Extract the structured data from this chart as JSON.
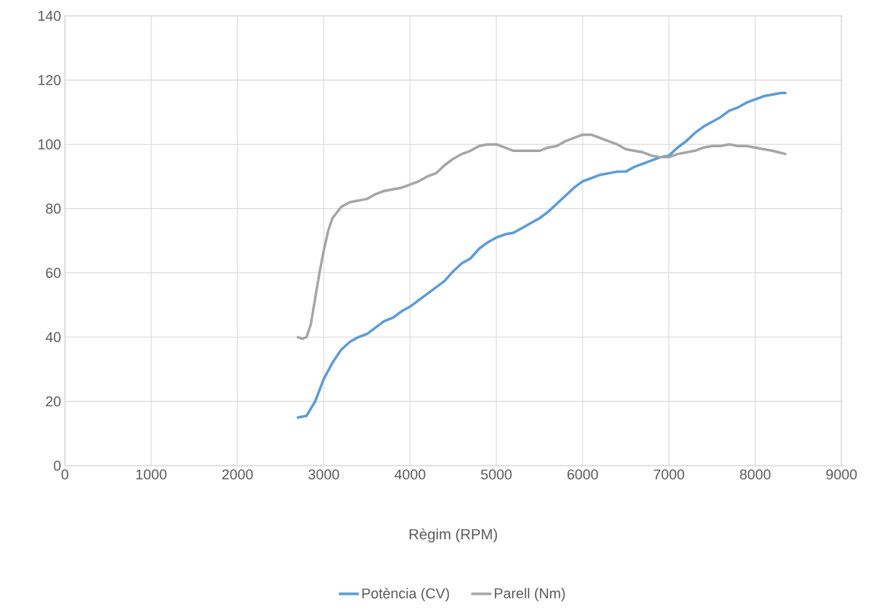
{
  "chart_data": {
    "type": "line",
    "xlabel": "Règim (RPM)",
    "xlim": [
      0,
      9000
    ],
    "xticks": [
      0,
      1000,
      2000,
      3000,
      4000,
      5000,
      6000,
      7000,
      8000,
      9000
    ],
    "ylim": [
      0,
      140
    ],
    "yticks": [
      0,
      20,
      40,
      60,
      80,
      100,
      120,
      140
    ],
    "grid": true,
    "legend": "bottom",
    "series": [
      {
        "name": "Potència (CV)",
        "color": "#5b9bd5",
        "x": [
          2700,
          2800,
          2900,
          3000,
          3100,
          3200,
          3300,
          3400,
          3500,
          3600,
          3700,
          3800,
          3900,
          4000,
          4100,
          4200,
          4300,
          4400,
          4500,
          4600,
          4700,
          4800,
          4900,
          5000,
          5100,
          5200,
          5300,
          5400,
          5500,
          5600,
          5700,
          5800,
          5900,
          6000,
          6100,
          6200,
          6300,
          6400,
          6500,
          6600,
          6700,
          6800,
          6900,
          7000,
          7100,
          7200,
          7300,
          7400,
          7500,
          7600,
          7700,
          7800,
          7900,
          8000,
          8100,
          8200,
          8300,
          8350
        ],
        "values": [
          15,
          15.5,
          20,
          27,
          32,
          36,
          38.5,
          40,
          41,
          43,
          45,
          46,
          48,
          49.5,
          51.5,
          53.5,
          55.5,
          57.5,
          60.5,
          63,
          64.5,
          67.5,
          69.5,
          71,
          72,
          72.5,
          74,
          75.5,
          77,
          79,
          81.5,
          84,
          86.5,
          88.5,
          89.5,
          90.5,
          91,
          91.5,
          91.5,
          93,
          94,
          95,
          96,
          96.5,
          99,
          101,
          103.5,
          105.5,
          107,
          108.5,
          110.5,
          111.5,
          113,
          114,
          115,
          115.5,
          116,
          116
        ]
      },
      {
        "name": "Parell (Nm)",
        "color": "#a5a5a5",
        "x": [
          2700,
          2750,
          2800,
          2850,
          2900,
          2950,
          3000,
          3050,
          3100,
          3200,
          3300,
          3400,
          3500,
          3600,
          3700,
          3800,
          3900,
          4000,
          4100,
          4200,
          4300,
          4400,
          4500,
          4600,
          4700,
          4800,
          4900,
          5000,
          5100,
          5200,
          5300,
          5400,
          5500,
          5600,
          5700,
          5800,
          5900,
          6000,
          6100,
          6200,
          6300,
          6400,
          6500,
          6600,
          6700,
          6800,
          6900,
          7000,
          7100,
          7200,
          7300,
          7400,
          7500,
          7600,
          7700,
          7800,
          7900,
          8000,
          8100,
          8200,
          8350
        ],
        "values": [
          40,
          39.5,
          40,
          44,
          52,
          60,
          67,
          73,
          77,
          80.5,
          82,
          82.5,
          83,
          84.5,
          85.5,
          86,
          86.5,
          87.5,
          88.5,
          90,
          91,
          93.5,
          95.5,
          97,
          98,
          99.5,
          100,
          100,
          99,
          98,
          98,
          98,
          98,
          99,
          99.5,
          101,
          102,
          103,
          103,
          102,
          101,
          100,
          98.5,
          98,
          97.5,
          96.5,
          96,
          96,
          97,
          97.5,
          98,
          99,
          99.5,
          99.5,
          100,
          99.5,
          99.5,
          99,
          98.5,
          98,
          97
        ]
      }
    ]
  }
}
